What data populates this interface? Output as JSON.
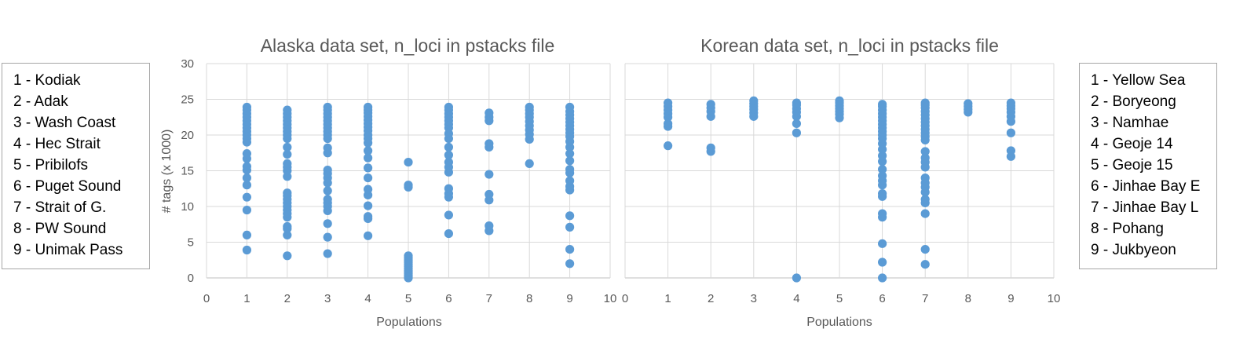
{
  "colors": {
    "point": "#5b9bd5",
    "grid": "#d9d9d9",
    "axis": "#bfbfbf",
    "text": "#595959"
  },
  "legend_left": {
    "items": [
      "1 - Kodiak",
      "2 - Adak",
      "3 - Wash Coast",
      "4 - Hec Strait",
      "5 - Pribilofs",
      "6 - Puget Sound",
      "7 - Strait of G.",
      "8 - PW Sound",
      "9 - Unimak Pass"
    ]
  },
  "legend_right": {
    "items": [
      "1 - Yellow Sea",
      "2 - Boryeong",
      "3 - Namhae",
      "4 - Geoje 14",
      "5 - Geoje 15",
      "6 - Jinhae Bay E",
      "7 - Jinhae Bay L",
      "8 - Pohang",
      "9 - Jukbyeon"
    ]
  },
  "chart_data": [
    {
      "type": "scatter",
      "title": "Alaska data set, n_loci in pstacks file",
      "xlabel": "Populations",
      "ylabel": "# tags (x 1000)",
      "xlim": [
        0,
        10
      ],
      "ylim": [
        0,
        30
      ],
      "xticks": [
        0,
        1,
        2,
        3,
        4,
        5,
        6,
        7,
        8,
        9,
        10
      ],
      "yticks": [
        0,
        5,
        10,
        15,
        20,
        25,
        30
      ],
      "grid": true,
      "series": [
        {
          "x": 1,
          "values": [
            3.9,
            6.0,
            9.5,
            11.3,
            13.0,
            14.0,
            15.1,
            15.6,
            16.7,
            17.4,
            19.0,
            19.5,
            20.0,
            20.5,
            21.0,
            21.5,
            22.0,
            22.5,
            23.0,
            23.5,
            23.9
          ]
        },
        {
          "x": 2,
          "values": [
            3.1,
            6.0,
            6.9,
            7.2,
            8.5,
            9.0,
            9.5,
            10.0,
            10.5,
            11.0,
            11.5,
            11.9,
            14.2,
            15.0,
            15.5,
            16.0,
            17.3,
            18.3,
            19.5,
            20.0,
            20.5,
            21.0,
            21.5,
            22.0,
            22.5,
            23.0,
            23.5
          ]
        },
        {
          "x": 3,
          "values": [
            3.4,
            5.7,
            7.6,
            9.4,
            10.0,
            10.5,
            11.0,
            12.2,
            13.3,
            14.0,
            14.6,
            15.1,
            17.5,
            18.2,
            19.5,
            20.0,
            20.5,
            21.0,
            21.5,
            22.0,
            22.5,
            23.0,
            23.5,
            23.9
          ]
        },
        {
          "x": 4,
          "values": [
            5.9,
            8.3,
            8.6,
            10.1,
            11.6,
            12.4,
            14.0,
            15.4,
            16.8,
            17.8,
            18.9,
            19.5,
            20.0,
            20.6,
            21.1,
            21.6,
            22.1,
            22.6,
            23.1,
            23.5,
            23.9
          ]
        },
        {
          "x": 5,
          "values": [
            0.0,
            0.2,
            0.4,
            0.6,
            0.8,
            1.0,
            1.3,
            1.6,
            1.9,
            2.2,
            2.5,
            2.8,
            3.1,
            12.7,
            13.0,
            16.2
          ]
        },
        {
          "x": 6,
          "values": [
            6.2,
            8.8,
            11.3,
            11.8,
            12.5,
            14.8,
            15.5,
            16.2,
            17.2,
            18.3,
            19.5,
            20.2,
            21.0,
            21.5,
            22.0,
            22.5,
            23.0,
            23.5,
            23.9
          ]
        },
        {
          "x": 7,
          "values": [
            6.6,
            7.3,
            10.9,
            11.7,
            14.5,
            18.3,
            18.8,
            22.0,
            22.5,
            23.1
          ]
        },
        {
          "x": 8,
          "values": [
            16.0,
            19.4,
            20.1,
            20.7,
            21.3,
            21.9,
            22.5,
            23.0,
            23.5,
            23.9
          ]
        },
        {
          "x": 9,
          "values": [
            2.0,
            4.0,
            7.1,
            8.7,
            12.3,
            12.8,
            13.6,
            14.7,
            15.2,
            16.4,
            17.4,
            18.3,
            19.1,
            19.8,
            20.3,
            20.8,
            21.3,
            21.8,
            22.3,
            22.8,
            23.3,
            23.9
          ]
        }
      ]
    },
    {
      "type": "scatter",
      "title": "Korean data set, n_loci in pstacks file",
      "xlabel": "Populations",
      "ylabel": "",
      "xlim": [
        0,
        10
      ],
      "ylim": [
        0,
        30
      ],
      "xticks": [
        0,
        1,
        2,
        3,
        4,
        5,
        6,
        7,
        8,
        9,
        10
      ],
      "grid": true,
      "series": [
        {
          "x": 1,
          "values": [
            18.5,
            21.2,
            21.6,
            22.5,
            23.0,
            23.5,
            24.0,
            24.5
          ]
        },
        {
          "x": 2,
          "values": [
            17.7,
            18.2,
            22.6,
            23.3,
            23.8,
            24.3
          ]
        },
        {
          "x": 3,
          "values": [
            22.6,
            23.1,
            23.6,
            24.0,
            24.4,
            24.8
          ]
        },
        {
          "x": 4,
          "values": [
            0.0,
            20.3,
            21.6,
            22.6,
            23.2,
            23.7,
            24.2,
            24.5
          ]
        },
        {
          "x": 5,
          "values": [
            22.4,
            22.9,
            23.3,
            23.7,
            24.1,
            24.5,
            24.8
          ]
        },
        {
          "x": 6,
          "values": [
            0.0,
            2.2,
            4.8,
            8.5,
            9.0,
            11.4,
            11.8,
            13.0,
            13.6,
            14.3,
            15.2,
            16.3,
            17.1,
            18.0,
            18.8,
            19.5,
            20.0,
            20.5,
            21.0,
            21.5,
            22.0,
            22.5,
            23.0,
            23.5,
            24.0,
            24.3
          ]
        },
        {
          "x": 7,
          "values": [
            1.9,
            4.0,
            9.0,
            10.5,
            11.0,
            12.0,
            12.7,
            13.3,
            14.0,
            15.5,
            16.2,
            16.8,
            17.7,
            19.3,
            19.8,
            20.3,
            20.8,
            21.3,
            21.8,
            22.3,
            22.8,
            23.3,
            23.8,
            24.2,
            24.5
          ]
        },
        {
          "x": 8,
          "values": [
            23.2,
            23.6,
            24.0,
            24.4
          ]
        },
        {
          "x": 9,
          "values": [
            17.0,
            17.8,
            20.3,
            21.9,
            22.6,
            23.2,
            23.7,
            24.1,
            24.5
          ]
        }
      ]
    }
  ]
}
